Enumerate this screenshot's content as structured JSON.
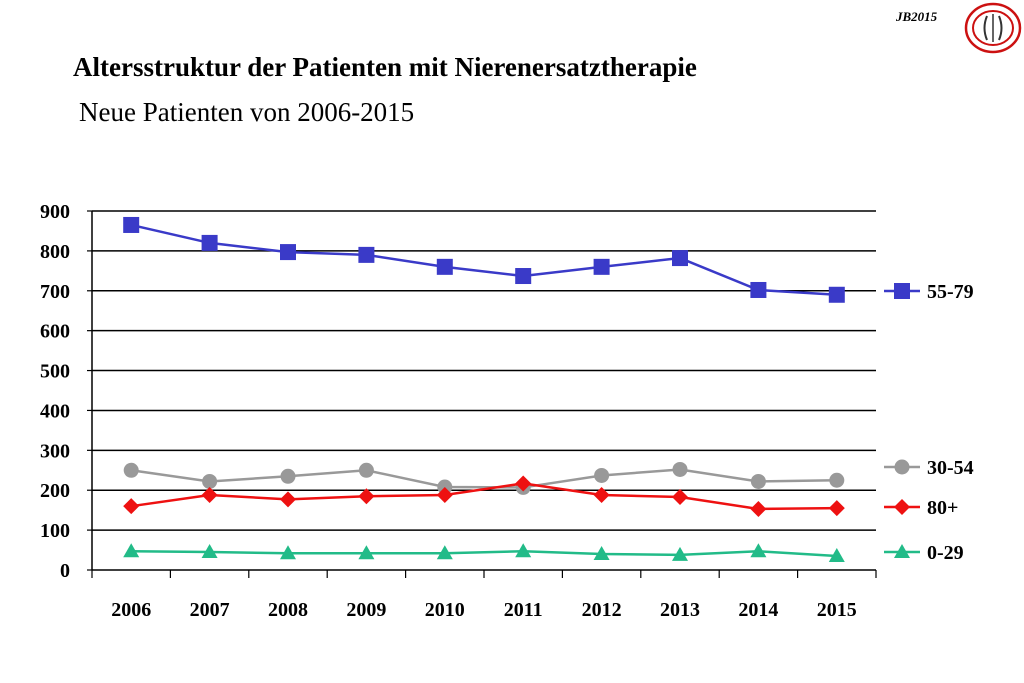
{
  "header": {
    "title": "Altersstruktur der Patienten mit Nierenersatztherapie",
    "subtitle": "Neue Patienten von 2006-2015",
    "brand": "JB2015"
  },
  "chart_data": {
    "type": "line",
    "title": "",
    "xlabel": "",
    "ylabel": "",
    "categories": [
      "2006",
      "2007",
      "2008",
      "2009",
      "2010",
      "2011",
      "2012",
      "2013",
      "2014",
      "2015"
    ],
    "yticks": [
      "0",
      "100",
      "200",
      "300",
      "400",
      "500",
      "600",
      "700",
      "800",
      "900"
    ],
    "ylim": [
      0,
      900
    ],
    "grid": true,
    "legend_position": "right",
    "series": [
      {
        "name": "55-79",
        "color": "#3a3ac8",
        "marker": "square",
        "values": [
          865,
          820,
          797,
          790,
          760,
          737,
          760,
          782,
          702,
          690
        ]
      },
      {
        "name": "30-54",
        "color": "#999999",
        "marker": "circle",
        "values": [
          250,
          222,
          235,
          250,
          208,
          207,
          237,
          252,
          222,
          225
        ]
      },
      {
        "name": "80+",
        "color": "#ee1111",
        "marker": "diamond",
        "values": [
          160,
          188,
          177,
          185,
          188,
          217,
          188,
          183,
          153,
          155
        ]
      },
      {
        "name": "0-29",
        "color": "#22bb88",
        "marker": "triangle",
        "values": [
          47,
          45,
          42,
          42,
          42,
          47,
          40,
          38,
          47,
          35
        ]
      }
    ]
  }
}
